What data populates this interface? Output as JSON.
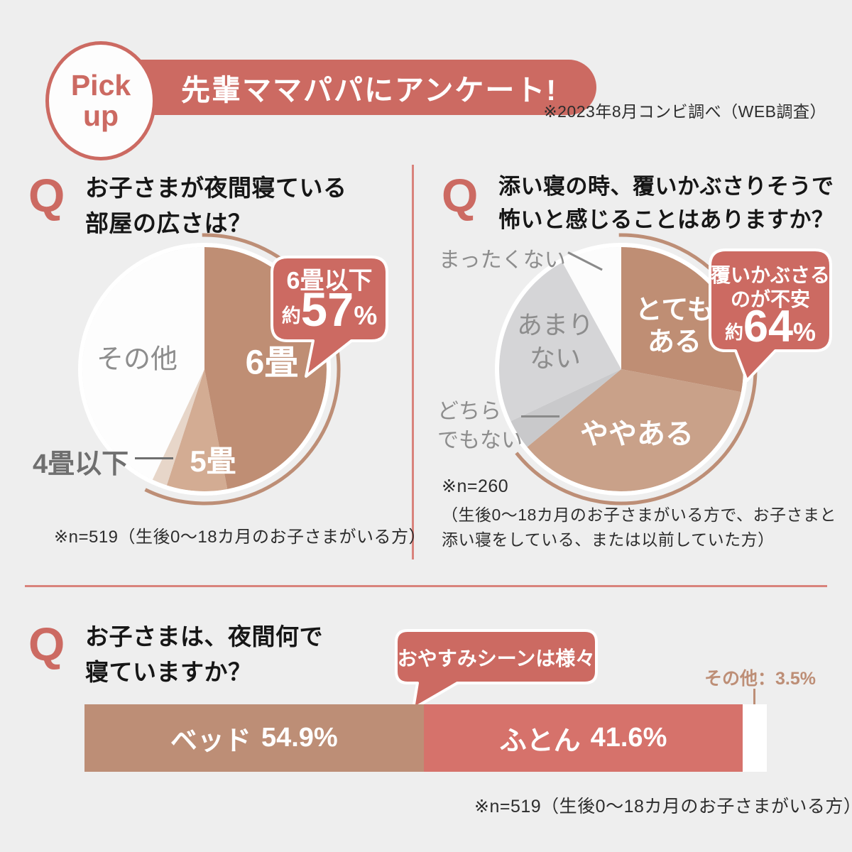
{
  "page": {
    "background": "#eeeeee",
    "q_mark": "Q"
  },
  "colors": {
    "accent_red": "#cc6a62",
    "accent_tan": "#bd8e76",
    "divider": "#d9837c"
  },
  "header": {
    "badge_line1": "Pick",
    "badge_line2": "up",
    "title": "先輩ママパパにアンケート!",
    "note": "※2023年8月コンビ調べ（WEB調査）"
  },
  "q1": {
    "question_line1": "お子さまが夜間寝ている",
    "question_line2": "部屋の広さは？",
    "note": "※n=519（生後0〜18カ月のお子さまがいる方）"
  },
  "q2": {
    "question_line1": "添い寝の時、覆いかぶさりそうで",
    "question_line2": "怖いと感じることはありますか？",
    "note_line1": "※n=260",
    "note_line2": "（生後0〜18カ月のお子さまがいる方で、お子さまと",
    "note_line3": "添い寝をしている、または以前していた方）",
    "display_labels": {
      "totemo_l1": "とても",
      "totemo_l2": "ある",
      "amari_l1": "あまり",
      "amari_l2": "ない",
      "dochira_l1": "どちら",
      "dochira_l2": "でもない"
    }
  },
  "q3": {
    "question_line1": "お子さまは、夜間何で",
    "question_line2": "寝ていますか？",
    "bubble": "おやすみシーンは様々",
    "other_label": "その他：3.5%",
    "note": "※n=519（生後0〜18カ月のお子さまがいる方）"
  },
  "chart_data": [
    {
      "type": "pie",
      "question": "お子さまが夜間寝ている部屋の広さは？",
      "n": 519,
      "start_angle": "top",
      "direction": "clockwise",
      "slices": [
        {
          "label": "6畳",
          "value_pct": 47,
          "estimated": true,
          "color": "#bf8e74",
          "label_color": "#ffffff"
        },
        {
          "label": "5畳",
          "value_pct": 8,
          "estimated": true,
          "color": "#d3ac93",
          "label_color": "#ffffff"
        },
        {
          "label": "4畳以下",
          "value_pct": 2,
          "estimated": true,
          "color": "#e7d6c9",
          "label_color": "#6f6f6f"
        },
        {
          "label": "その他",
          "value_pct": 43,
          "estimated": true,
          "color": "#fdfdfd",
          "label_color": "#8d8d8d"
        }
      ],
      "highlight": {
        "label": "6畳以下",
        "prefix": "約",
        "value_label": "57",
        "suffix": "%",
        "covers_pct": 57,
        "bubble_color": "#cc6a62",
        "arc_color": "#bd8e76"
      }
    },
    {
      "type": "pie",
      "question": "添い寝の時、覆いかぶさりそうで怖いと感じることはありますか？",
      "n": 260,
      "start_angle": "top",
      "direction": "clockwise",
      "slices": [
        {
          "label": "とてもある",
          "value_pct": 28,
          "estimated": true,
          "color": "#bf8e74",
          "label_color": "#ffffff"
        },
        {
          "label": "ややある",
          "value_pct": 36,
          "estimated": true,
          "color": "#c9a189",
          "label_color": "#ffffff"
        },
        {
          "label": "どちらでもない",
          "value_pct": 4,
          "estimated": true,
          "color": "#c9c9cb",
          "label_color": "#8d8d8d"
        },
        {
          "label": "あまりない",
          "value_pct": 24,
          "estimated": true,
          "color": "#d5d5d7",
          "label_color": "#8d8d8d"
        },
        {
          "label": "まったくない",
          "value_pct": 8,
          "estimated": true,
          "color": "#fcfcfc",
          "label_color": "#8d8d8d"
        }
      ],
      "highlight": {
        "label_line1": "覆いかぶさる",
        "label_line2": "のが不安",
        "prefix": "約",
        "value_label": "64",
        "suffix": "%",
        "covers_pct": 64,
        "bubble_color": "#cc6a62",
        "arc_color": "#bd8e76"
      }
    },
    {
      "type": "bar",
      "orientation": "horizontal_stacked",
      "question": "お子さまは、夜間何で寝ていますか？",
      "n": 519,
      "segments": [
        {
          "label": "ベッド",
          "value_pct": 54.9,
          "value_label": "54.9%",
          "color": "#bd8e76",
          "display_pct": 49.7
        },
        {
          "label": "ふとん",
          "value_pct": 41.6,
          "value_label": "41.6%",
          "color": "#d6726b",
          "display_pct": 46.8
        },
        {
          "label": "その他",
          "value_pct": 3.5,
          "value_label": "3.5%",
          "color": "#ffffff",
          "display_pct": 3.5
        }
      ]
    }
  ]
}
